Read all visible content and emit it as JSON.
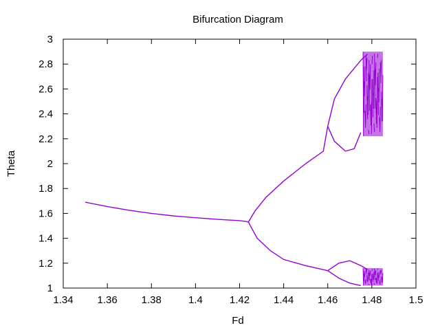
{
  "chart_data": {
    "type": "scatter",
    "title": "Bifurcation Diagram",
    "xlabel": "Fd",
    "ylabel": "Theta",
    "xlim": [
      1.34,
      1.5
    ],
    "ylim": [
      1,
      3
    ],
    "x_ticks": [
      "1.34",
      "1.36",
      "1.38",
      "1.4",
      "1.42",
      "1.44",
      "1.46",
      "1.48",
      "1.5"
    ],
    "y_ticks": [
      "1",
      "1.2",
      "1.4",
      "1.6",
      "1.8",
      "2",
      "2.2",
      "2.4",
      "2.6",
      "2.8",
      "3"
    ],
    "grid": false,
    "legend": "none",
    "color": "#9400d3",
    "series": [
      {
        "points": [
          [
            1.35,
            1.69
          ],
          [
            1.36,
            1.655
          ],
          [
            1.37,
            1.625
          ],
          [
            1.38,
            1.6
          ],
          [
            1.39,
            1.58
          ],
          [
            1.4,
            1.565
          ],
          [
            1.41,
            1.552
          ],
          [
            1.42,
            1.542
          ],
          [
            1.423,
            1.535
          ],
          [
            1.424,
            1.53
          ]
        ]
      },
      {
        "points": [
          [
            1.424,
            1.53
          ],
          [
            1.427,
            1.62
          ],
          [
            1.432,
            1.73
          ],
          [
            1.44,
            1.86
          ],
          [
            1.45,
            2.0
          ],
          [
            1.458,
            2.1
          ],
          [
            1.46,
            2.3
          ]
        ]
      },
      {
        "points": [
          [
            1.46,
            2.3
          ],
          [
            1.463,
            2.52
          ],
          [
            1.468,
            2.68
          ],
          [
            1.475,
            2.83
          ],
          [
            1.478,
            2.88
          ]
        ]
      },
      {
        "points": [
          [
            1.46,
            2.3
          ],
          [
            1.463,
            2.18
          ],
          [
            1.468,
            2.1
          ],
          [
            1.472,
            2.12
          ],
          [
            1.475,
            2.25
          ]
        ]
      },
      {
        "points": [
          [
            1.424,
            1.53
          ],
          [
            1.428,
            1.4
          ],
          [
            1.434,
            1.3
          ],
          [
            1.44,
            1.23
          ],
          [
            1.45,
            1.18
          ],
          [
            1.46,
            1.14
          ]
        ]
      },
      {
        "points": [
          [
            1.46,
            1.14
          ],
          [
            1.465,
            1.2
          ],
          [
            1.47,
            1.22
          ],
          [
            1.475,
            1.18
          ],
          [
            1.478,
            1.15
          ]
        ]
      },
      {
        "points": [
          [
            1.46,
            1.14
          ],
          [
            1.465,
            1.08
          ],
          [
            1.47,
            1.04
          ],
          [
            1.475,
            1.02
          ]
        ]
      }
    ],
    "chaotic_regions": [
      {
        "x": [
          1.476,
          1.485
        ],
        "y": [
          2.22,
          2.9
        ]
      },
      {
        "x": [
          1.476,
          1.485
        ],
        "y": [
          1.02,
          1.16
        ]
      }
    ]
  }
}
